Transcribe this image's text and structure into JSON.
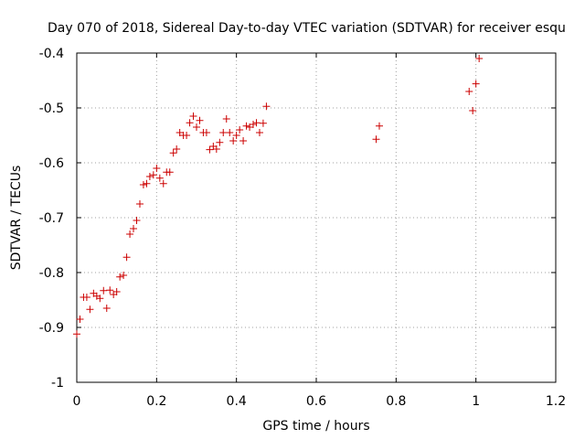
{
  "chart_data": {
    "type": "scatter",
    "title": "Day 070 of 2018, Sidereal Day-to-day VTEC variation (SDTVAR) for receiver esqu",
    "xlabel": "GPS time / hours",
    "ylabel": "SDTVAR / TECUs",
    "xlim": [
      0,
      1.2
    ],
    "ylim": [
      -1,
      -0.4
    ],
    "xticks": [
      0,
      0.2,
      0.4,
      0.6,
      0.8,
      1,
      1.2
    ],
    "xtick_labels": [
      "0",
      "0.2",
      "0.4",
      "0.6",
      "0.8",
      "1",
      "1.2"
    ],
    "yticks": [
      -1,
      -0.9,
      -0.8,
      -0.7,
      -0.6,
      -0.5,
      -0.4
    ],
    "ytick_labels": [
      "-1",
      "-0.9",
      "-0.8",
      "-0.7",
      "-0.6",
      "-0.5",
      "-0.4"
    ],
    "grid": true,
    "marker": "plus",
    "color": "#cc0000",
    "series": [
      {
        "name": "SDTVAR",
        "points": [
          [
            0.0,
            -0.912
          ],
          [
            0.008,
            -0.885
          ],
          [
            0.017,
            -0.845
          ],
          [
            0.025,
            -0.845
          ],
          [
            0.033,
            -0.867
          ],
          [
            0.042,
            -0.838
          ],
          [
            0.05,
            -0.843
          ],
          [
            0.058,
            -0.847
          ],
          [
            0.067,
            -0.833
          ],
          [
            0.075,
            -0.865
          ],
          [
            0.083,
            -0.832
          ],
          [
            0.092,
            -0.84
          ],
          [
            0.1,
            -0.835
          ],
          [
            0.108,
            -0.808
          ],
          [
            0.117,
            -0.805
          ],
          [
            0.125,
            -0.772
          ],
          [
            0.133,
            -0.73
          ],
          [
            0.142,
            -0.72
          ],
          [
            0.15,
            -0.705
          ],
          [
            0.158,
            -0.675
          ],
          [
            0.167,
            -0.64
          ],
          [
            0.175,
            -0.638
          ],
          [
            0.183,
            -0.625
          ],
          [
            0.192,
            -0.622
          ],
          [
            0.2,
            -0.61
          ],
          [
            0.208,
            -0.628
          ],
          [
            0.217,
            -0.638
          ],
          [
            0.225,
            -0.617
          ],
          [
            0.233,
            -0.617
          ],
          [
            0.242,
            -0.582
          ],
          [
            0.25,
            -0.575
          ],
          [
            0.258,
            -0.545
          ],
          [
            0.267,
            -0.55
          ],
          [
            0.275,
            -0.55
          ],
          [
            0.283,
            -0.527
          ],
          [
            0.292,
            -0.515
          ],
          [
            0.3,
            -0.535
          ],
          [
            0.308,
            -0.523
          ],
          [
            0.317,
            -0.545
          ],
          [
            0.325,
            -0.545
          ],
          [
            0.333,
            -0.576
          ],
          [
            0.342,
            -0.57
          ],
          [
            0.35,
            -0.575
          ],
          [
            0.358,
            -0.563
          ],
          [
            0.367,
            -0.545
          ],
          [
            0.375,
            -0.52
          ],
          [
            0.383,
            -0.545
          ],
          [
            0.392,
            -0.56
          ],
          [
            0.4,
            -0.55
          ],
          [
            0.408,
            -0.54
          ],
          [
            0.417,
            -0.56
          ],
          [
            0.425,
            -0.533
          ],
          [
            0.433,
            -0.535
          ],
          [
            0.442,
            -0.53
          ],
          [
            0.45,
            -0.527
          ],
          [
            0.458,
            -0.545
          ],
          [
            0.467,
            -0.528
          ],
          [
            0.475,
            -0.497
          ],
          [
            0.75,
            -0.557
          ],
          [
            0.758,
            -0.533
          ],
          [
            0.983,
            -0.47
          ],
          [
            0.992,
            -0.505
          ],
          [
            1.0,
            -0.456
          ],
          [
            1.008,
            -0.41
          ]
        ]
      }
    ]
  }
}
